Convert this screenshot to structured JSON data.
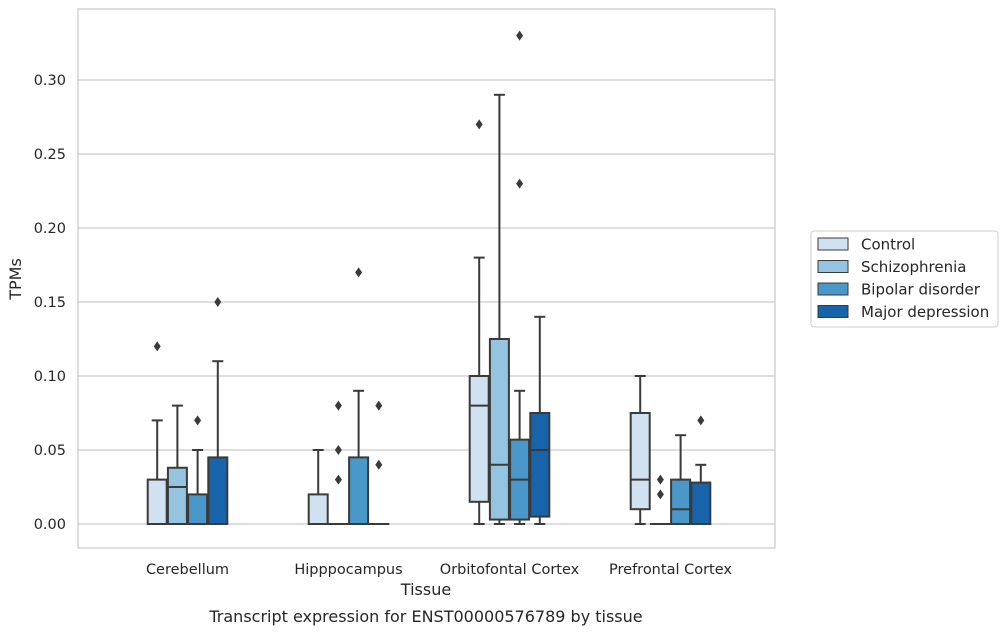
{
  "chart_data": {
    "type": "box",
    "xlabel": "Tissue",
    "ylabel": "TPMs",
    "caption": "Transcript expression for ENST00000576789 by tissue",
    "ylim": [
      -0.0165,
      0.346
    ],
    "yticks": [
      0.0,
      0.05,
      0.1,
      0.15,
      0.2,
      0.25,
      0.3
    ],
    "ytick_labels": [
      "0.00",
      "0.05",
      "0.10",
      "0.15",
      "0.20",
      "0.25",
      "0.30"
    ],
    "grid": true,
    "legend_position": "right",
    "categories": [
      "Cerebellum",
      "Hipppocampus",
      "Orbitofontal Cortex",
      "Prefrontal Cortex"
    ],
    "series": [
      {
        "name": "Control",
        "color": "#d0e1f2",
        "boxes": [
          {
            "q1": 0.0,
            "median": 0.0,
            "q3": 0.03,
            "whisker_low": 0.0,
            "whisker_high": 0.07,
            "outliers": [
              0.12
            ]
          },
          {
            "q1": 0.0,
            "median": 0.0,
            "q3": 0.02,
            "whisker_low": 0.0,
            "whisker_high": 0.05,
            "outliers": []
          },
          {
            "q1": 0.015,
            "median": 0.08,
            "q3": 0.1,
            "whisker_low": 0.0,
            "whisker_high": 0.18,
            "outliers": [
              0.27
            ]
          },
          {
            "q1": 0.01,
            "median": 0.03,
            "q3": 0.075,
            "whisker_low": 0.0,
            "whisker_high": 0.1,
            "outliers": []
          }
        ]
      },
      {
        "name": "Schizophrenia",
        "color": "#94c4df",
        "boxes": [
          {
            "q1": 0.0,
            "median": 0.025,
            "q3": 0.038,
            "whisker_low": 0.0,
            "whisker_high": 0.08,
            "outliers": []
          },
          {
            "q1": 0.0,
            "median": 0.0,
            "q3": 0.0,
            "whisker_low": 0.0,
            "whisker_high": 0.0,
            "outliers": [
              0.03,
              0.05,
              0.08
            ]
          },
          {
            "q1": 0.003,
            "median": 0.04,
            "q3": 0.125,
            "whisker_low": 0.0,
            "whisker_high": 0.29,
            "outliers": []
          },
          {
            "q1": 0.0,
            "median": 0.0,
            "q3": 0.0,
            "whisker_low": 0.0,
            "whisker_high": 0.0,
            "outliers": [
              0.02,
              0.03
            ]
          }
        ]
      },
      {
        "name": "Bipolar disorder",
        "color": "#4a98c9",
        "boxes": [
          {
            "q1": 0.0,
            "median": 0.0,
            "q3": 0.02,
            "whisker_low": 0.0,
            "whisker_high": 0.05,
            "outliers": [
              0.07
            ]
          },
          {
            "q1": 0.0,
            "median": 0.0,
            "q3": 0.045,
            "whisker_low": 0.0,
            "whisker_high": 0.09,
            "outliers": [
              0.17
            ]
          },
          {
            "q1": 0.003,
            "median": 0.03,
            "q3": 0.057,
            "whisker_low": 0.0,
            "whisker_high": 0.09,
            "outliers": [
              0.23,
              0.33
            ]
          },
          {
            "q1": 0.0,
            "median": 0.01,
            "q3": 0.03,
            "whisker_low": 0.0,
            "whisker_high": 0.06,
            "outliers": []
          }
        ]
      },
      {
        "name": "Major depression",
        "color": "#1764ab",
        "boxes": [
          {
            "q1": 0.0,
            "median": 0.0,
            "q3": 0.045,
            "whisker_low": 0.0,
            "whisker_high": 0.11,
            "outliers": [
              0.15
            ]
          },
          {
            "q1": 0.0,
            "median": 0.0,
            "q3": 0.0,
            "whisker_low": 0.0,
            "whisker_high": 0.0,
            "outliers": [
              0.04,
              0.08
            ]
          },
          {
            "q1": 0.005,
            "median": 0.05,
            "q3": 0.075,
            "whisker_low": 0.0,
            "whisker_high": 0.14,
            "outliers": []
          },
          {
            "q1": 0.0,
            "median": 0.0,
            "q3": 0.028,
            "whisker_low": 0.0,
            "whisker_high": 0.04,
            "outliers": [
              0.07
            ]
          }
        ]
      }
    ]
  }
}
